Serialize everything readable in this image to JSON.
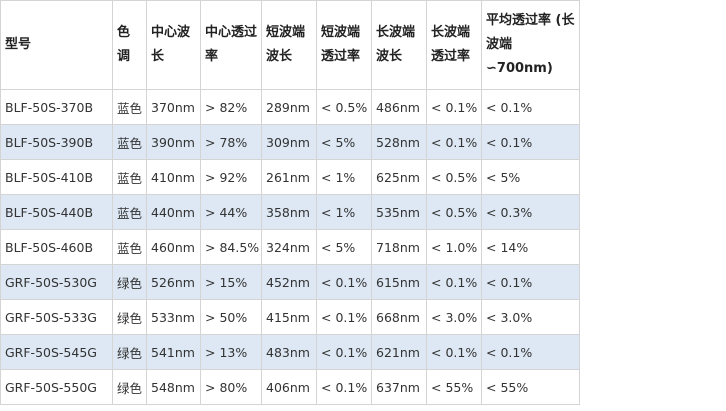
{
  "table": {
    "header": [
      "型号",
      "色调",
      "中心波长",
      "中心透过率",
      "短波端波长",
      "短波端透过率",
      "长波端波长",
      "长波端透过率",
      "平均透过率 (长波端∽700nm)"
    ],
    "rows": [
      [
        "BLF-50S-370B",
        "蓝色",
        "370nm",
        "> 82%",
        "289nm",
        "< 0.5%",
        "486nm",
        "< 0.1%",
        "< 0.1%"
      ],
      [
        "BLF-50S-390B",
        "蓝色",
        "390nm",
        "> 78%",
        "309nm",
        "< 5%",
        "528nm",
        "< 0.1%",
        "< 0.1%"
      ],
      [
        "BLF-50S-410B",
        "蓝色",
        "410nm",
        "> 92%",
        "261nm",
        "< 1%",
        "625nm",
        "< 0.5%",
        "< 5%"
      ],
      [
        "BLF-50S-440B",
        "蓝色",
        "440nm",
        "> 44%",
        "358nm",
        "< 1%",
        "535nm",
        "< 0.5%",
        "< 0.3%"
      ],
      [
        "BLF-50S-460B",
        "蓝色",
        "460nm",
        "> 84.5%",
        "324nm",
        "< 5%",
        "718nm",
        "< 1.0%",
        "< 14%"
      ],
      [
        "GRF-50S-530G",
        "绿色",
        "526nm",
        "> 15%",
        "452nm",
        "< 0.1%",
        "615nm",
        "< 0.1%",
        "< 0.1%"
      ],
      [
        "GRF-50S-533G",
        "绿色",
        "533nm",
        "> 50%",
        "415nm",
        "< 0.1%",
        "668nm",
        "< 3.0%",
        "< 3.0%"
      ],
      [
        "GRF-50S-545G",
        "绿色",
        "541nm",
        "> 13%",
        "483nm",
        "< 0.1%",
        "621nm",
        "< 0.1%",
        "< 0.1%"
      ],
      [
        "GRF-50S-550G",
        "绿色",
        "548nm",
        "> 80%",
        "406nm",
        "< 0.1%",
        "637nm",
        "< 55%",
        "< 55%"
      ]
    ]
  }
}
